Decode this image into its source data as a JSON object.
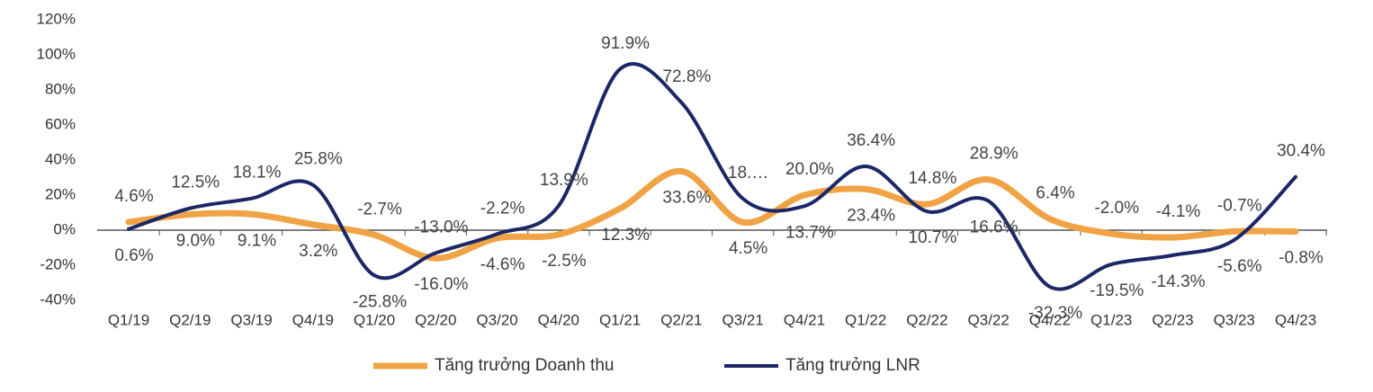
{
  "chart_data": {
    "type": "line",
    "categories": [
      "Q1/19",
      "Q2/19",
      "Q3/19",
      "Q4/19",
      "Q1/20",
      "Q2/20",
      "Q3/20",
      "Q4/20",
      "Q1/21",
      "Q2/21",
      "Q3/21",
      "Q4/21",
      "Q1/22",
      "Q2/22",
      "Q3/22",
      "Q4/22",
      "Q1/23",
      "Q2/23",
      "Q3/23",
      "Q4/23"
    ],
    "series": [
      {
        "name": "Tăng trưởng Doanh thu",
        "color": "#f0a345",
        "values": [
          4.6,
          9.0,
          9.1,
          3.2,
          -2.7,
          -16.0,
          -4.6,
          -2.5,
          12.3,
          33.6,
          4.5,
          20.0,
          23.4,
          14.8,
          28.9,
          6.4,
          -2.0,
          -4.1,
          -0.7,
          -0.8
        ],
        "value_labels": [
          "4.6%",
          "9.0%",
          "9.1%",
          "3.2%",
          "-2.7%",
          "-16.0%",
          "-4.6%",
          "-2.5%",
          "12.3%",
          "33.6%",
          "4.5%",
          "20.0%",
          "23.4%",
          "14.8%",
          "28.9%",
          "6.4%",
          "-2.0%",
          "-4.1%",
          "-0.7%",
          "-0.8%"
        ]
      },
      {
        "name": "Tăng trưởng LNR",
        "color": "#1b2766",
        "values": [
          0.6,
          12.5,
          18.1,
          25.8,
          -25.8,
          -13.0,
          -2.2,
          13.9,
          91.9,
          72.8,
          18,
          13.7,
          36.4,
          10.7,
          16.6,
          -32.3,
          -19.5,
          -14.3,
          -5.6,
          30.4
        ],
        "value_labels": [
          "0.6%",
          "12.5%",
          "18.1%",
          "25.8%",
          "-25.8%",
          "-13.0%",
          "-2.2%",
          "13.9%",
          "91.9%",
          "72.8%",
          "18.…",
          "13.7%",
          "36.4%",
          "10.7%",
          "16.6%",
          "-32.3%",
          "-19.5%",
          "-14.3%",
          "-5.6%",
          "30.4%"
        ]
      }
    ],
    "ylim": [
      -40,
      120
    ],
    "yticks": [
      {
        "value": -40,
        "label": "-40%"
      },
      {
        "value": -20,
        "label": "-20%"
      },
      {
        "value": 0,
        "label": "0%"
      },
      {
        "value": 20,
        "label": "20%"
      },
      {
        "value": 40,
        "label": "40%"
      },
      {
        "value": 60,
        "label": "60%"
      },
      {
        "value": 80,
        "label": "80%"
      },
      {
        "value": 100,
        "label": "100%"
      },
      {
        "value": 120,
        "label": "120%"
      }
    ],
    "legend": "bottom"
  }
}
